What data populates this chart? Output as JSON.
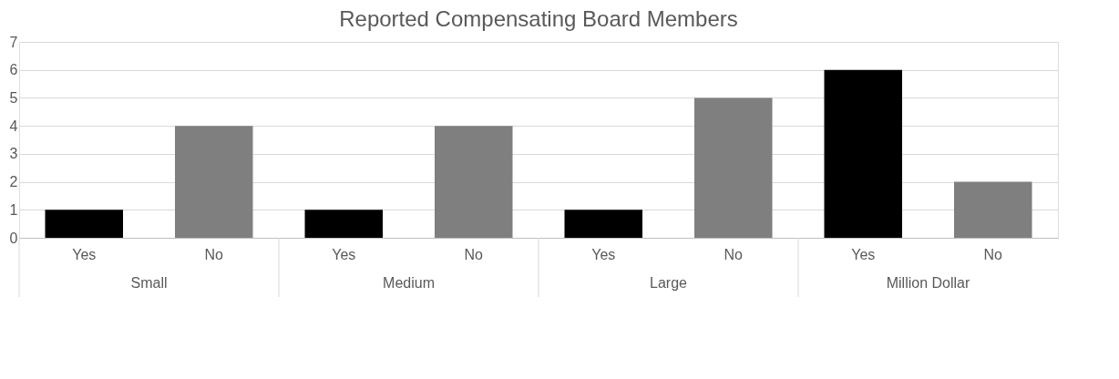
{
  "chart_data": {
    "type": "bar",
    "title": "Reported Compensating Board Members",
    "categories": [
      "Small",
      "Medium",
      "Large",
      "Million Dollar"
    ],
    "series": [
      {
        "name": "Yes",
        "color": "#000000",
        "values": [
          1,
          1,
          1,
          6
        ]
      },
      {
        "name": "No",
        "color": "#7f7f7f",
        "values": [
          4,
          4,
          5,
          2
        ]
      }
    ],
    "ylim": [
      0,
      7
    ],
    "yticks": [
      0,
      1,
      2,
      3,
      4,
      5,
      6,
      7
    ],
    "grid": "y"
  }
}
